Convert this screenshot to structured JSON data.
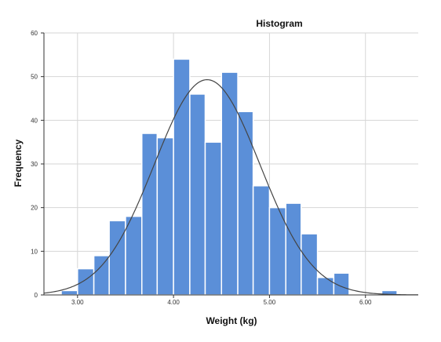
{
  "chart_data": {
    "type": "bar",
    "title": "Histogram",
    "xlabel": "Weight (kg)",
    "ylabel": "Frequency",
    "xlim": [
      2.65,
      6.55
    ],
    "ylim": [
      0,
      60
    ],
    "x_ticks": [
      3.0,
      4.0,
      5.0,
      6.0
    ],
    "x_tick_labels": [
      "3.00",
      "4.00",
      "5.00",
      "6.00"
    ],
    "y_ticks": [
      0,
      10,
      20,
      30,
      40,
      50,
      60
    ],
    "y_tick_labels": [
      "0",
      "10",
      "20",
      "30",
      "40",
      "50",
      "60"
    ],
    "bin_width": 0.167,
    "bins": [
      {
        "start": 2.83,
        "end": 3.0,
        "value": 1
      },
      {
        "start": 3.0,
        "end": 3.17,
        "value": 6
      },
      {
        "start": 3.17,
        "end": 3.33,
        "value": 9
      },
      {
        "start": 3.33,
        "end": 3.5,
        "value": 17
      },
      {
        "start": 3.5,
        "end": 3.67,
        "value": 18
      },
      {
        "start": 3.67,
        "end": 3.83,
        "value": 37
      },
      {
        "start": 3.83,
        "end": 4.0,
        "value": 36
      },
      {
        "start": 4.0,
        "end": 4.17,
        "value": 54
      },
      {
        "start": 4.17,
        "end": 4.33,
        "value": 46
      },
      {
        "start": 4.33,
        "end": 4.5,
        "value": 35
      },
      {
        "start": 4.5,
        "end": 4.67,
        "value": 51
      },
      {
        "start": 4.67,
        "end": 4.83,
        "value": 42
      },
      {
        "start": 4.83,
        "end": 5.0,
        "value": 25
      },
      {
        "start": 5.0,
        "end": 5.17,
        "value": 20
      },
      {
        "start": 5.17,
        "end": 5.33,
        "value": 21
      },
      {
        "start": 5.33,
        "end": 5.5,
        "value": 14
      },
      {
        "start": 5.5,
        "end": 5.67,
        "value": 4
      },
      {
        "start": 5.67,
        "end": 5.83,
        "value": 5
      },
      {
        "start": 6.17,
        "end": 6.33,
        "value": 1
      }
    ],
    "normal_curve": {
      "mean": 4.35,
      "peak": 49.3,
      "sd": 0.55
    },
    "grid": true,
    "colors": {
      "bar_fill": "#5b8fd8",
      "bar_edge": "#ffffff",
      "curve": "#444444",
      "grid": "#d6d6d6",
      "axis": "#333333"
    }
  }
}
